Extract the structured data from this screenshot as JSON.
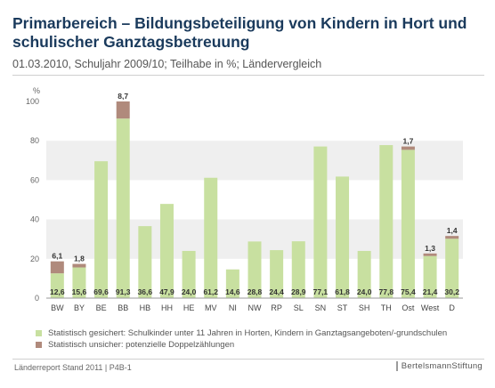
{
  "header": {
    "title": "Primarbereich – Bildungsbeteiligung von Kindern in Hort und schulischer Ganztagsbetreuung",
    "subtitle": "01.03.2010, Schuljahr 2009/10; Teilhabe in %; Ländervergleich"
  },
  "legend": {
    "gesichert": "Statistisch gesichert: Schulkinder unter 11 Jahren in Horten, Kindern in Ganztagsangeboten/-grundschulen",
    "unsicher": "Statistisch unsicher: potenzielle Doppelzählungen"
  },
  "footer": {
    "source": "Länderreport Stand 2011 | P4B-1",
    "brand": "BertelsmannStiftung"
  },
  "colors": {
    "gesichert": "#c8e0a0",
    "unsicher": "#b08a7c",
    "band": "#efefef"
  },
  "chart_data": {
    "type": "bar",
    "stacked": true,
    "ylabel": "%",
    "ylim": [
      0,
      100
    ],
    "yticks": [
      "0",
      "20",
      "40",
      "60",
      "80",
      "100"
    ],
    "categories": [
      "BW",
      "BY",
      "BE",
      "BB",
      "HB",
      "HH",
      "HE",
      "MV",
      "NI",
      "NW",
      "RP",
      "SL",
      "SN",
      "ST",
      "SH",
      "TH",
      "Ost",
      "West",
      "D"
    ],
    "series": [
      {
        "name": "Statistisch gesichert: Schulkinder unter 11 Jahren in Horten, Kindern in Ganztagsangeboten/-grundschulen",
        "values": [
          12.6,
          15.6,
          69.6,
          91.3,
          36.6,
          47.9,
          24.0,
          61.2,
          14.6,
          28.8,
          24.4,
          28.9,
          77.1,
          61.8,
          24.0,
          77.8,
          75.4,
          21.4,
          30.2
        ],
        "labels": [
          "12,6",
          "15,6",
          "69,6",
          "91,3",
          "36,6",
          "47,9",
          "24,0",
          "61,2",
          "14,6",
          "28,8",
          "24,4",
          "28,9",
          "77,1",
          "61,8",
          "24,0",
          "77,8",
          "75,4",
          "21,4",
          "30,2"
        ]
      },
      {
        "name": "Statistisch unsicher: potenzielle Doppelzählungen",
        "values": [
          6.1,
          1.8,
          0,
          8.7,
          0,
          0,
          0,
          0,
          0,
          0,
          0,
          0,
          0,
          0,
          0,
          0,
          1.7,
          1.3,
          1.4
        ],
        "labels": [
          "6,1",
          "1,8",
          "",
          "8,7",
          "",
          "",
          "",
          "",
          "",
          "",
          "",
          "",
          "",
          "",
          "",
          "",
          "1,7",
          "1,3",
          "1,4"
        ]
      }
    ]
  }
}
